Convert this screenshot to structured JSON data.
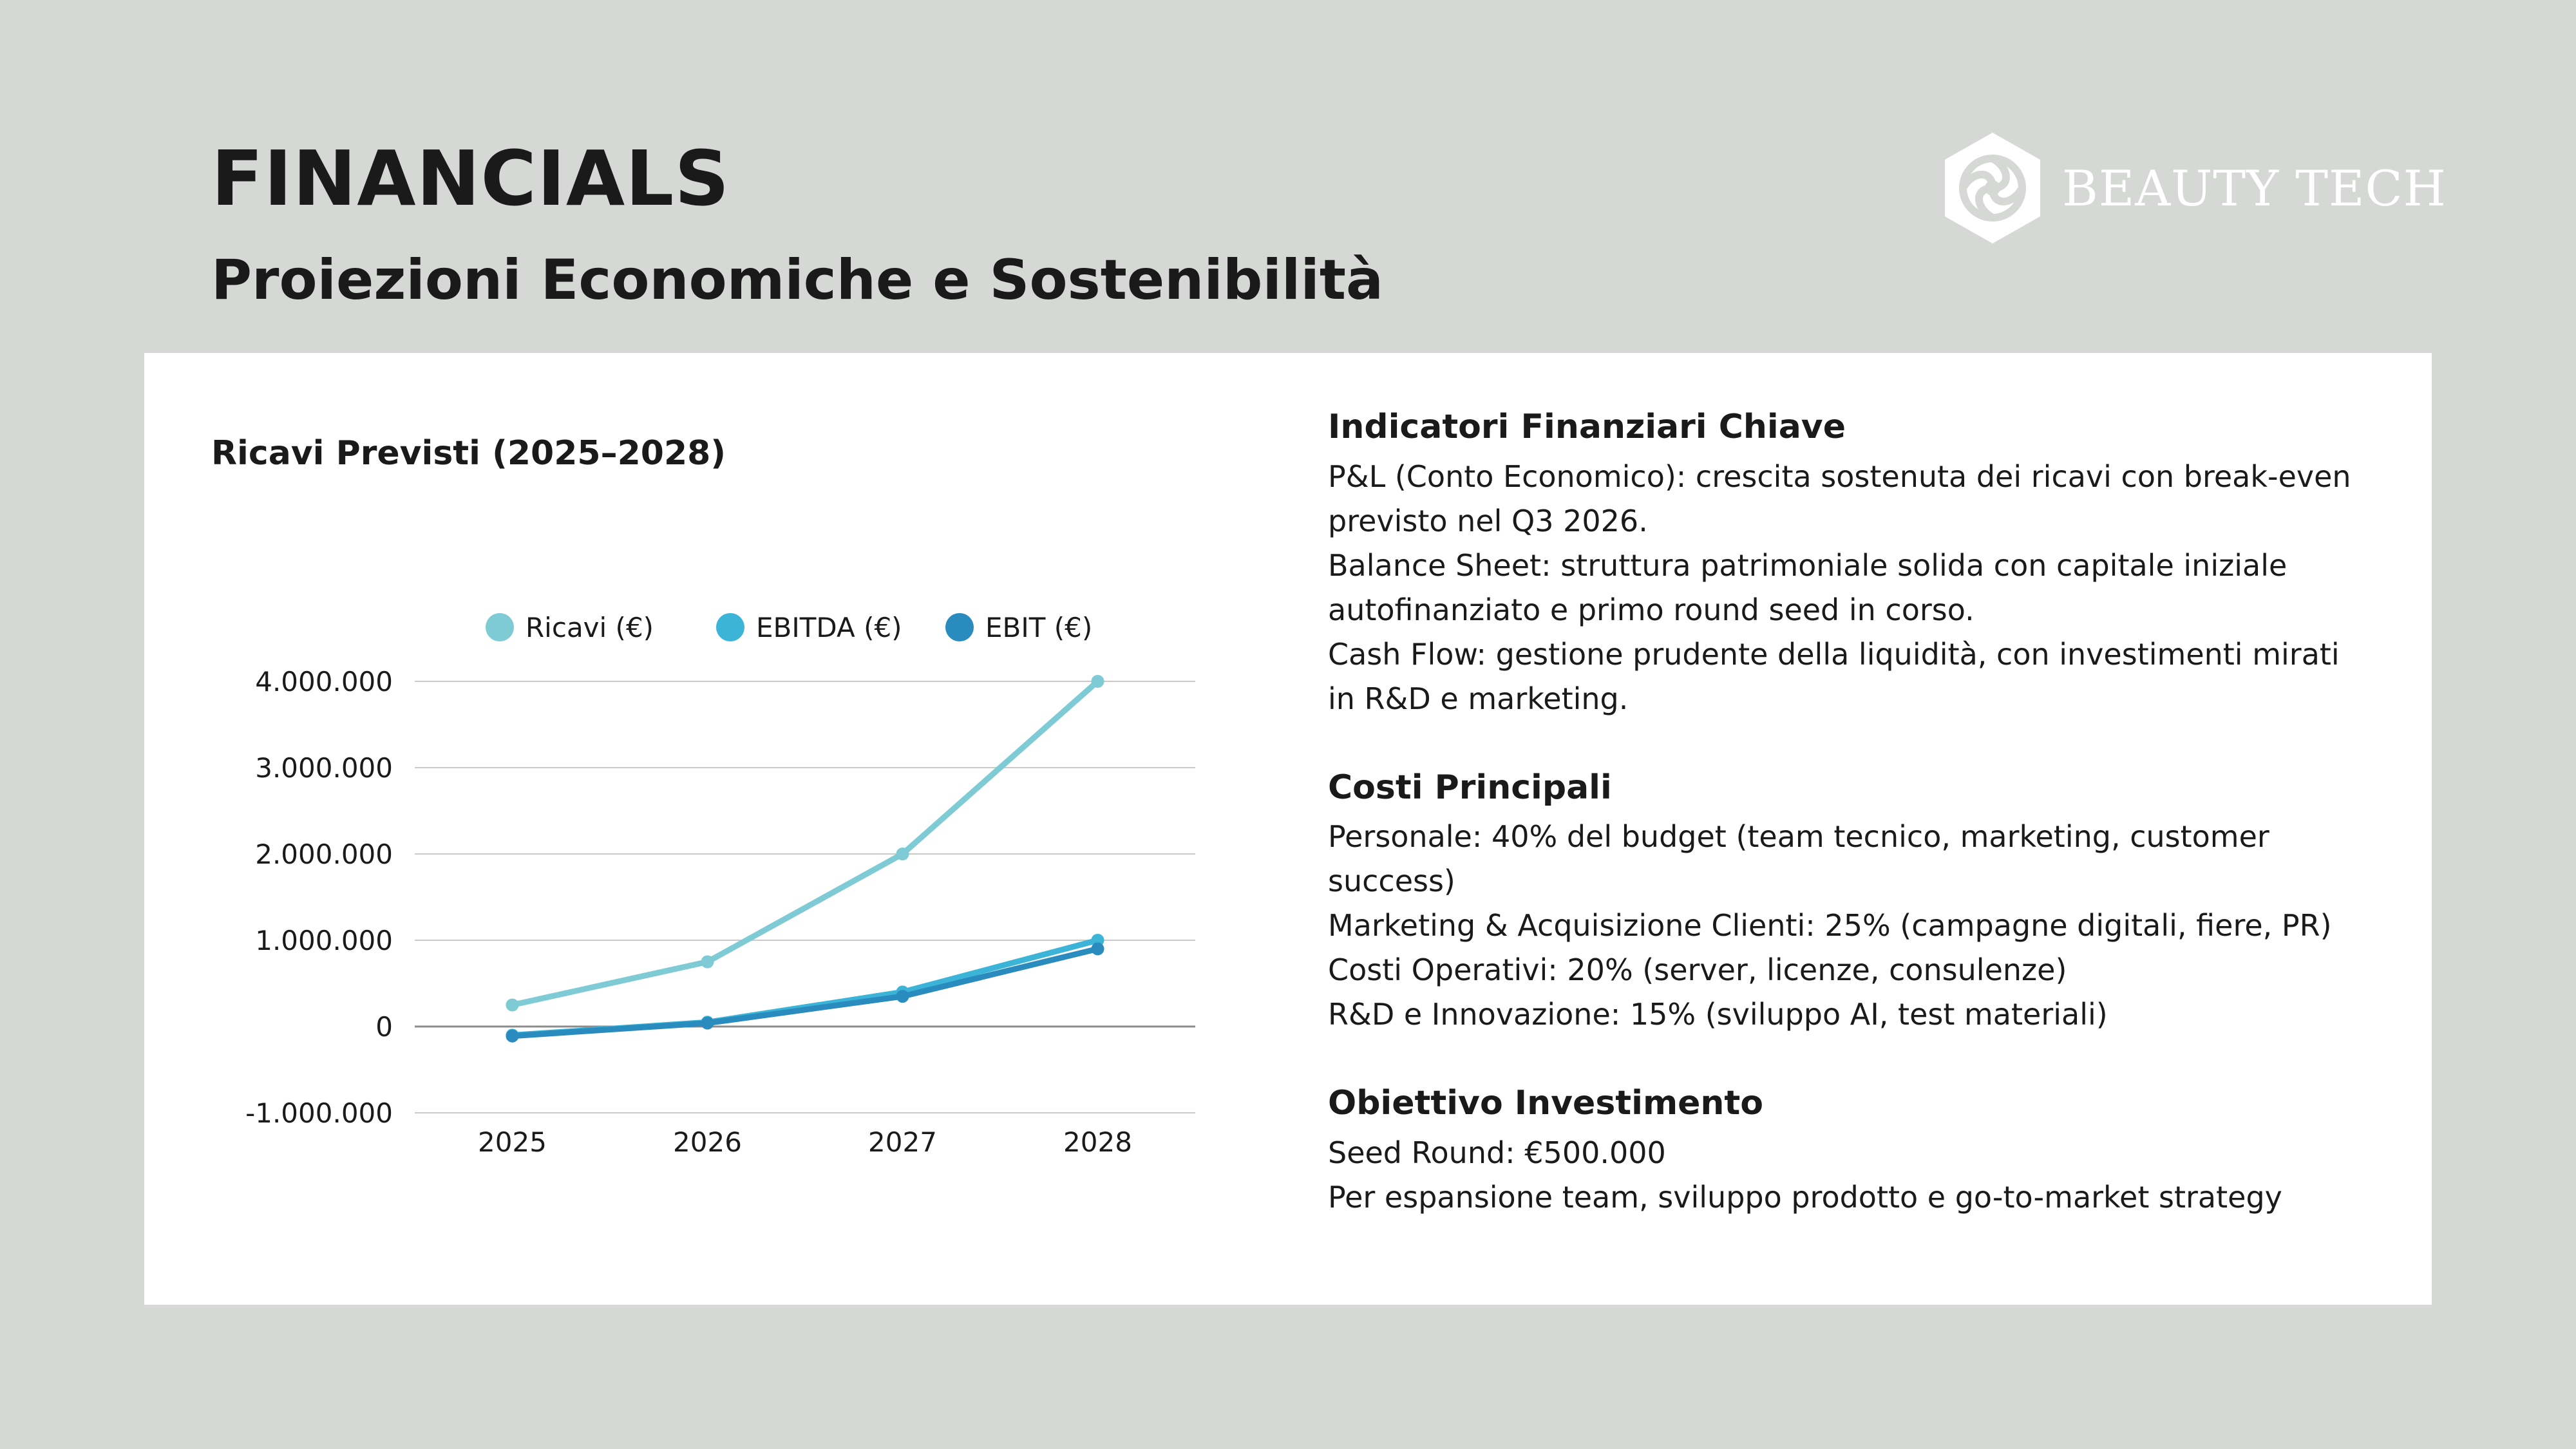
{
  "header": {
    "title": "FINANCIALS",
    "subtitle": "Proiezioni Economiche e Sostenibilità",
    "logo_text": "BEAUTY TECH",
    "logo_icon": "beauty-tech-hexagon-icon"
  },
  "chart_data": {
    "type": "line",
    "title": "Ricavi Previsti (2025–2028)",
    "x": [
      "2025",
      "2026",
      "2027",
      "2028"
    ],
    "series": [
      {
        "name": "Ricavi (€)",
        "color": "#7ecbd6",
        "values": [
          250000,
          750000,
          2000000,
          4000000
        ]
      },
      {
        "name": "EBITDA (€)",
        "color": "#3bb4d8",
        "values": [
          -100000,
          50000,
          400000,
          1000000
        ]
      },
      {
        "name": "EBIT (€)",
        "color": "#2a8bbf",
        "values": [
          -110000,
          40000,
          350000,
          900000
        ]
      }
    ],
    "ylim": [
      -1000000,
      4000000
    ],
    "yticks": [
      -1000000,
      0,
      1000000,
      2000000,
      3000000,
      4000000
    ],
    "ytick_labels": [
      "-1.000.000",
      "0",
      "1.000.000",
      "2.000.000",
      "3.000.000",
      "4.000.000"
    ],
    "grid": true,
    "legend_position": "top"
  },
  "sections": [
    {
      "heading": "Indicatori Finanziari Chiave",
      "lines": [
        "P&L (Conto Economico): crescita sostenuta dei ricavi con break-even previsto nel Q3 2026.",
        "Balance Sheet: struttura patrimoniale solida con capitale iniziale autofinanziato e primo round seed in corso.",
        "Cash Flow: gestione prudente della liquidità, con investimenti mirati in R&D e marketing."
      ]
    },
    {
      "heading": "Costi Principali",
      "lines": [
        "Personale: 40% del budget (team tecnico, marketing, customer success)",
        "Marketing & Acquisizione Clienti: 25% (campagne digitali, fiere, PR)",
        "Costi Operativi: 20% (server, licenze, consulenze)",
        "R&D e Innovazione: 15% (sviluppo AI, test materiali)"
      ]
    },
    {
      "heading": "Obiettivo Investimento",
      "lines": [
        "Seed Round: €500.000",
        "Per espansione team, sviluppo prodotto e go-to-market strategy"
      ]
    }
  ]
}
